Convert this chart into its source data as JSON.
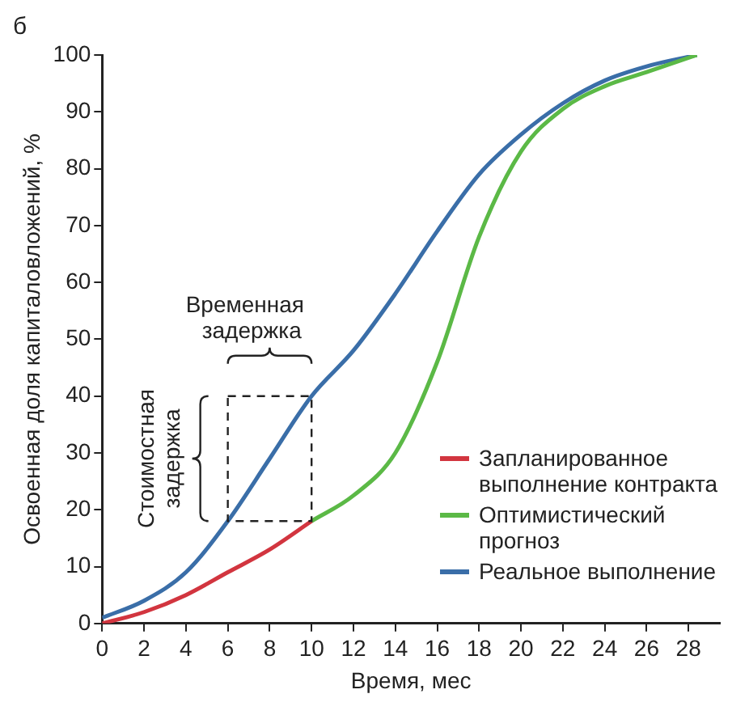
{
  "chart_data": {
    "type": "line",
    "title": "б",
    "xlabel": "Время, мес",
    "ylabel": "Освоенная доля капиталовложений, %",
    "xlim": [
      0,
      29.5
    ],
    "xticks": [
      0,
      2,
      4,
      6,
      8,
      10,
      12,
      14,
      16,
      18,
      20,
      22,
      24,
      26,
      28
    ],
    "ylim": [
      0,
      100
    ],
    "yticks": [
      0,
      10,
      20,
      30,
      40,
      50,
      60,
      70,
      80,
      90,
      100
    ],
    "grid": false,
    "legend": "bottom right",
    "marker": "none",
    "line_style": "solid",
    "series": [
      {
        "name": "Запланированное выполнение контракта",
        "color": "#d2353f",
        "x": [
          0,
          2,
          4,
          6,
          8,
          10
        ],
        "values": [
          0,
          2,
          5,
          9,
          13,
          18
        ]
      },
      {
        "name": "Оптимистический прогноз",
        "color": "#5bb946",
        "x": [
          10,
          12,
          14,
          16,
          18,
          20,
          22,
          24,
          26,
          28.4
        ],
        "values": [
          18,
          22.5,
          30,
          46,
          68,
          83,
          90.5,
          94.5,
          97,
          100
        ]
      },
      {
        "name": "Реальное выполнение",
        "color": "#3a6ea8",
        "x": [
          0,
          2,
          4,
          6,
          8,
          10,
          12,
          14,
          16,
          18,
          20,
          22,
          24,
          26,
          28.4
        ],
        "values": [
          1,
          4,
          9,
          18,
          29,
          40,
          48,
          58,
          69,
          79,
          86,
          91.5,
          95.5,
          98,
          100
        ]
      }
    ],
    "annotations": [
      "Временная задержка",
      "Стоимостная задержка"
    ]
  }
}
